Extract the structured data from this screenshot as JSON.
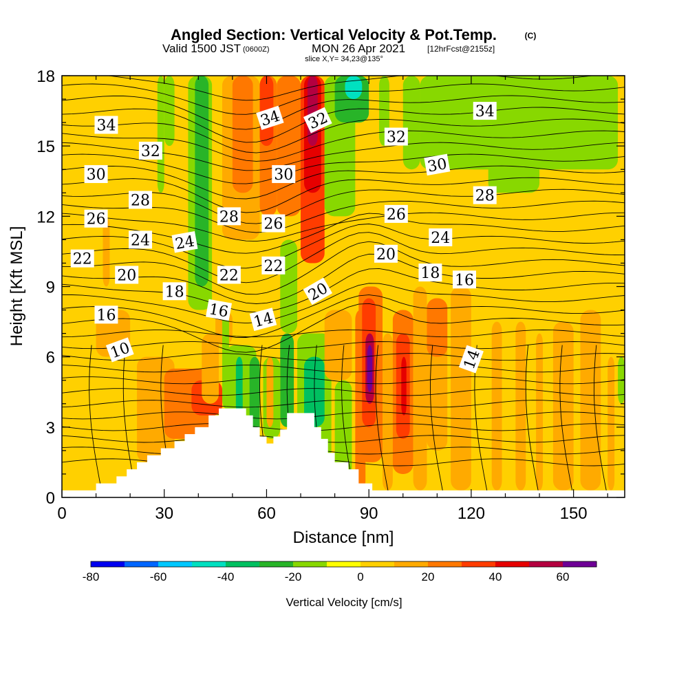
{
  "title": {
    "main": "Angled Section: Vertical Velocity & Pot.Temp.",
    "copyright": "(C)",
    "valid_prefix": "Valid 1500 JST",
    "valid_utc": "(0600Z)",
    "valid_date": "MON 26 Apr 2021",
    "forecast": "[12hrFcst@2155z]",
    "slice": "slice X,Y= 34,23@135°"
  },
  "colors": {
    "terrain": "#ffffff",
    "contour": "#000000",
    "scale": [
      "#0000f0",
      "#0066ff",
      "#00c8ff",
      "#00e0c0",
      "#00c060",
      "#28b428",
      "#88d800",
      "#ffff00",
      "#ffd000",
      "#ffaa00",
      "#ff7800",
      "#ff3c00",
      "#e60000",
      "#b40040",
      "#6e0096"
    ]
  },
  "chart_data": {
    "type": "heatmap",
    "xlabel": "Distance [nm]",
    "ylabel": "Height [Kft MSL]",
    "xlim": [
      0,
      165
    ],
    "ylim": [
      0,
      18
    ],
    "x_ticks": [
      0,
      30,
      60,
      90,
      120,
      150
    ],
    "y_ticks": [
      0,
      3,
      6,
      9,
      12,
      15,
      18
    ],
    "grid": false,
    "colorbar": {
      "label": "Vertical Velocity [cm/s]",
      "placement": "bottom",
      "bounds": [
        -80,
        -70,
        -60,
        -50,
        -40,
        -30,
        -20,
        -10,
        0,
        10,
        20,
        30,
        40,
        50,
        60,
        70
      ],
      "tick_values": [
        -80,
        -60,
        -40,
        -20,
        0,
        20,
        40,
        60
      ]
    },
    "background_value": 3,
    "velocity_features": [
      {
        "x0": 28,
        "x1": 30,
        "y0": 13,
        "y1": 18,
        "v": -12
      },
      {
        "x0": 30,
        "x1": 33,
        "y0": 15,
        "y1": 18,
        "v": -15
      },
      {
        "x0": 37,
        "x1": 44,
        "y0": 8,
        "y1": 18,
        "v": -15
      },
      {
        "x0": 39,
        "x1": 43,
        "y0": 9,
        "y1": 18,
        "v": -25
      },
      {
        "x0": 47,
        "x1": 58,
        "y0": 11,
        "y1": 18,
        "v": 12
      },
      {
        "x0": 50,
        "x1": 56,
        "y0": 13,
        "y1": 18,
        "v": 20
      },
      {
        "x0": 58,
        "x1": 63,
        "y0": 12,
        "y1": 18,
        "v": 22
      },
      {
        "x0": 58,
        "x1": 62,
        "y0": 15,
        "y1": 18,
        "v": 35
      },
      {
        "x0": 63,
        "x1": 70,
        "y0": 12,
        "y1": 18,
        "v": 22
      },
      {
        "x0": 70,
        "x1": 77,
        "y0": 10,
        "y1": 18,
        "v": 35
      },
      {
        "x0": 71,
        "x1": 76,
        "y0": 13,
        "y1": 18,
        "v": 45
      },
      {
        "x0": 72,
        "x1": 75,
        "y0": 15,
        "y1": 18,
        "v": 52
      },
      {
        "x0": 64,
        "x1": 69,
        "y0": 7,
        "y1": 11,
        "v": -15
      },
      {
        "x0": 64,
        "x1": 68,
        "y0": 3,
        "y1": 7,
        "v": -25
      },
      {
        "x0": 77,
        "x1": 86,
        "y0": 12,
        "y1": 18,
        "v": -15
      },
      {
        "x0": 80,
        "x1": 90,
        "y0": 16,
        "y1": 18,
        "v": -22
      },
      {
        "x0": 83,
        "x1": 88,
        "y0": 17,
        "y1": 18,
        "v": -45
      },
      {
        "x0": 93,
        "x1": 96,
        "y0": 15,
        "y1": 18,
        "v": -15
      },
      {
        "x0": 100,
        "x1": 105,
        "y0": 14,
        "y1": 18,
        "v": -15
      },
      {
        "x0": 106,
        "x1": 115,
        "y0": 16,
        "y1": 18,
        "v": -20
      },
      {
        "x0": 105,
        "x1": 133,
        "y0": 14,
        "y1": 18,
        "v": -12
      },
      {
        "x0": 118,
        "x1": 163,
        "y0": 14,
        "y1": 18,
        "v": -15
      },
      {
        "x0": 125,
        "x1": 140,
        "y0": 13,
        "y1": 16,
        "v": -12
      },
      {
        "x0": 10,
        "x1": 20,
        "y0": 6,
        "y1": 8,
        "v": 10
      },
      {
        "x0": 12,
        "x1": 14,
        "y0": 9,
        "y1": 12,
        "v": 10
      },
      {
        "x0": 22,
        "x1": 33,
        "y0": 1.5,
        "y1": 6,
        "v": 15
      },
      {
        "x0": 30,
        "x1": 45,
        "y0": 2.5,
        "y1": 5.5,
        "v": 25
      },
      {
        "x0": 38,
        "x1": 47,
        "y0": 3.5,
        "y1": 5,
        "v": 35
      },
      {
        "x0": 41,
        "x1": 46,
        "y0": 4,
        "y1": 7,
        "v": 15
      },
      {
        "x0": 45,
        "x1": 50,
        "y0": 6.5,
        "y1": 8,
        "v": 15
      },
      {
        "x0": 47,
        "x1": 49,
        "y0": 3.8,
        "y1": 8,
        "v": -15
      },
      {
        "x0": 48,
        "x1": 57,
        "y0": 2.3,
        "y1": 6.5,
        "v": -20
      },
      {
        "x0": 51,
        "x1": 53,
        "y0": 3.5,
        "y1": 6,
        "v": -35
      },
      {
        "x0": 53,
        "x1": 55,
        "y0": 4,
        "y1": 5.5,
        "v": -15
      },
      {
        "x0": 55,
        "x1": 58,
        "y0": 2.5,
        "y1": 6,
        "v": -25
      },
      {
        "x0": 59,
        "x1": 64,
        "y0": 2.5,
        "y1": 6,
        "v": -15
      },
      {
        "x0": 60,
        "x1": 62,
        "y0": 3,
        "y1": 6,
        "v": 10
      },
      {
        "x0": 69,
        "x1": 79,
        "y0": 1.5,
        "y1": 7,
        "v": -20
      },
      {
        "x0": 71,
        "x1": 77,
        "y0": 3,
        "y1": 6,
        "v": -40
      },
      {
        "x0": 80,
        "x1": 85,
        "y0": 0.3,
        "y1": 5,
        "v": -15
      },
      {
        "x0": 77,
        "x1": 85,
        "y0": 5,
        "y1": 8,
        "v": 10
      },
      {
        "x0": 86,
        "x1": 89,
        "y0": 0.3,
        "y1": 8,
        "v": 20
      },
      {
        "x0": 87,
        "x1": 94,
        "y0": 1.5,
        "y1": 9,
        "v": 25
      },
      {
        "x0": 88,
        "x1": 92,
        "y0": 3,
        "y1": 8.5,
        "v": 38
      },
      {
        "x0": 89,
        "x1": 91.5,
        "y0": 4,
        "y1": 7,
        "v": 50
      },
      {
        "x0": 89.5,
        "x1": 91,
        "y0": 4.5,
        "y1": 6.5,
        "v": 60
      },
      {
        "x0": 94,
        "x1": 97,
        "y0": 0.3,
        "y1": 7,
        "v": 15
      },
      {
        "x0": 97,
        "x1": 103,
        "y0": 1,
        "y1": 8,
        "v": 22
      },
      {
        "x0": 98,
        "x1": 102,
        "y0": 2.5,
        "y1": 7,
        "v": 35
      },
      {
        "x0": 99.5,
        "x1": 101,
        "y0": 3.5,
        "y1": 6,
        "v": 45
      },
      {
        "x0": 103,
        "x1": 107,
        "y0": 0.3,
        "y1": 9,
        "v": 15
      },
      {
        "x0": 107,
        "x1": 113,
        "y0": 2,
        "y1": 8.5,
        "v": 15
      },
      {
        "x0": 107,
        "x1": 113,
        "y0": 6,
        "y1": 8.5,
        "v": 22
      },
      {
        "x0": 114,
        "x1": 120,
        "y0": 0.3,
        "y1": 9,
        "v": 12
      },
      {
        "x0": 126,
        "x1": 129,
        "y0": 0.3,
        "y1": 7.5,
        "v": 12
      },
      {
        "x0": 133,
        "x1": 136,
        "y0": 0.3,
        "y1": 7.5,
        "v": 12
      },
      {
        "x0": 139,
        "x1": 141,
        "y0": 0.3,
        "y1": 7,
        "v": 12
      },
      {
        "x0": 144,
        "x1": 150,
        "y0": 0.3,
        "y1": 7.5,
        "v": 12
      },
      {
        "x0": 152,
        "x1": 158,
        "y0": 0.3,
        "y1": 8,
        "v": 12
      },
      {
        "x0": 160,
        "x1": 162,
        "y0": 0.3,
        "y1": 6,
        "v": 12
      },
      {
        "x0": 163,
        "x1": 165,
        "y0": 4,
        "y1": 6,
        "v": -15
      }
    ],
    "terrain_profile": {
      "x": [
        0,
        10,
        16,
        19,
        22,
        25,
        29,
        33,
        36,
        39,
        43,
        46,
        48,
        50,
        52,
        54,
        56,
        58,
        60,
        62,
        64,
        66,
        68,
        70,
        72,
        74,
        76,
        78,
        80,
        84,
        87,
        91,
        165
      ],
      "y": [
        0.3,
        0.6,
        0.9,
        1.2,
        1.5,
        1.8,
        2.1,
        2.4,
        2.7,
        3.0,
        3.5,
        3.8,
        3.8,
        3.8,
        3.8,
        3.5,
        3.0,
        2.6,
        2.3,
        2.6,
        2.9,
        3.6,
        3.6,
        3.6,
        3.6,
        3.0,
        2.5,
        1.9,
        1.5,
        1.2,
        0.6,
        0.3,
        0.3
      ]
    },
    "isentrope_labels": [
      {
        "text": "34",
        "x": 13,
        "y": 15.9,
        "angle": 0
      },
      {
        "text": "32",
        "x": 26,
        "y": 14.8,
        "angle": 0
      },
      {
        "text": "30",
        "x": 10,
        "y": 13.8,
        "angle": 0
      },
      {
        "text": "28",
        "x": 23,
        "y": 12.7,
        "angle": 0
      },
      {
        "text": "26",
        "x": 10,
        "y": 11.9,
        "angle": 0
      },
      {
        "text": "24",
        "x": 23,
        "y": 11.0,
        "angle": 0
      },
      {
        "text": "22",
        "x": 6,
        "y": 10.2,
        "angle": 0
      },
      {
        "text": "20",
        "x": 19,
        "y": 9.5,
        "angle": 0
      },
      {
        "text": "18",
        "x": 33,
        "y": 8.8,
        "angle": 0
      },
      {
        "text": "16",
        "x": 13,
        "y": 7.8,
        "angle": 0
      },
      {
        "text": "10",
        "x": 17,
        "y": 6.3,
        "angle": -20
      },
      {
        "text": "24",
        "x": 36,
        "y": 10.9,
        "angle": -10
      },
      {
        "text": "28",
        "x": 49,
        "y": 12.0,
        "angle": 0
      },
      {
        "text": "22",
        "x": 49,
        "y": 9.5,
        "angle": 0
      },
      {
        "text": "16",
        "x": 46,
        "y": 8.0,
        "angle": 10
      },
      {
        "text": "34",
        "x": 61,
        "y": 16.2,
        "angle": -18
      },
      {
        "text": "30",
        "x": 65,
        "y": 13.8,
        "angle": 0
      },
      {
        "text": "26",
        "x": 62,
        "y": 11.7,
        "angle": 0
      },
      {
        "text": "22",
        "x": 62,
        "y": 9.9,
        "angle": 0
      },
      {
        "text": "14",
        "x": 59,
        "y": 7.6,
        "angle": -15
      },
      {
        "text": "32",
        "x": 75,
        "y": 16.1,
        "angle": -25
      },
      {
        "text": "20",
        "x": 75,
        "y": 8.8,
        "angle": -30
      },
      {
        "text": "32",
        "x": 98,
        "y": 15.4,
        "angle": 0
      },
      {
        "text": "30",
        "x": 110,
        "y": 14.2,
        "angle": -10
      },
      {
        "text": "28",
        "x": 124,
        "y": 12.9,
        "angle": 0
      },
      {
        "text": "26",
        "x": 98,
        "y": 12.1,
        "angle": 0
      },
      {
        "text": "24",
        "x": 111,
        "y": 11.1,
        "angle": 0
      },
      {
        "text": "20",
        "x": 95,
        "y": 10.4,
        "angle": 0
      },
      {
        "text": "18",
        "x": 108,
        "y": 9.6,
        "angle": 0
      },
      {
        "text": "16",
        "x": 118,
        "y": 9.3,
        "angle": 0
      },
      {
        "text": "34",
        "x": 124,
        "y": 16.5,
        "angle": 0
      },
      {
        "text": "14",
        "x": 120,
        "y": 5.9,
        "angle": -70
      }
    ]
  }
}
